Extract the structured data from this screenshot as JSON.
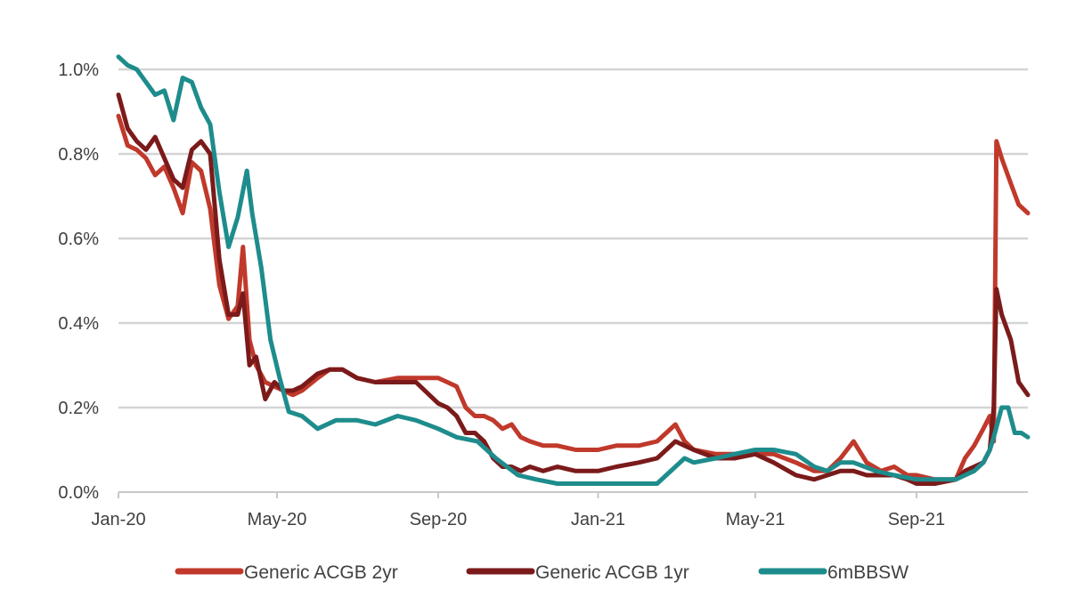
{
  "chart_data": {
    "type": "line",
    "title": "",
    "xlabel": "",
    "ylabel": "",
    "x_range": [
      "2020-01-01",
      "2021-11-25"
    ],
    "ylim": [
      0,
      1.0
    ],
    "y_ticks": [
      0.0,
      0.2,
      0.4,
      0.6,
      0.8,
      1.0
    ],
    "y_tick_labels": [
      "0.0%",
      "0.2%",
      "0.4%",
      "0.6%",
      "0.8%",
      "1.0%"
    ],
    "x_ticks": [
      "2020-01-01",
      "2020-05-01",
      "2020-09-01",
      "2021-01-01",
      "2021-05-01",
      "2021-09-01"
    ],
    "x_tick_labels": [
      "Jan-20",
      "May-20",
      "Sep-20",
      "Jan-21",
      "May-21",
      "Sep-21"
    ],
    "grid": "horizontal",
    "legend_position": "bottom",
    "series": [
      {
        "name": "Generic ACGB 2yr",
        "color": "#C0392B",
        "points": [
          [
            "2020-01-01",
            0.89
          ],
          [
            "2020-01-08",
            0.82
          ],
          [
            "2020-01-15",
            0.81
          ],
          [
            "2020-01-22",
            0.79
          ],
          [
            "2020-01-29",
            0.75
          ],
          [
            "2020-02-05",
            0.77
          ],
          [
            "2020-02-12",
            0.72
          ],
          [
            "2020-02-19",
            0.66
          ],
          [
            "2020-02-26",
            0.78
          ],
          [
            "2020-03-04",
            0.76
          ],
          [
            "2020-03-11",
            0.67
          ],
          [
            "2020-03-18",
            0.49
          ],
          [
            "2020-03-25",
            0.41
          ],
          [
            "2020-04-01",
            0.44
          ],
          [
            "2020-04-05",
            0.58
          ],
          [
            "2020-04-10",
            0.36
          ],
          [
            "2020-04-15",
            0.3
          ],
          [
            "2020-04-22",
            0.26
          ],
          [
            "2020-04-29",
            0.25
          ],
          [
            "2020-05-06",
            0.24
          ],
          [
            "2020-05-13",
            0.23
          ],
          [
            "2020-05-20",
            0.24
          ],
          [
            "2020-06-01",
            0.27
          ],
          [
            "2020-06-10",
            0.29
          ],
          [
            "2020-06-20",
            0.29
          ],
          [
            "2020-07-01",
            0.27
          ],
          [
            "2020-07-15",
            0.26
          ],
          [
            "2020-08-01",
            0.27
          ],
          [
            "2020-08-15",
            0.27
          ],
          [
            "2020-09-01",
            0.27
          ],
          [
            "2020-09-08",
            0.26
          ],
          [
            "2020-09-15",
            0.25
          ],
          [
            "2020-09-22",
            0.2
          ],
          [
            "2020-09-29",
            0.18
          ],
          [
            "2020-10-06",
            0.18
          ],
          [
            "2020-10-13",
            0.17
          ],
          [
            "2020-10-20",
            0.15
          ],
          [
            "2020-10-27",
            0.16
          ],
          [
            "2020-11-03",
            0.13
          ],
          [
            "2020-11-10",
            0.12
          ],
          [
            "2020-11-20",
            0.11
          ],
          [
            "2020-12-01",
            0.11
          ],
          [
            "2020-12-15",
            0.1
          ],
          [
            "2021-01-01",
            0.1
          ],
          [
            "2021-01-15",
            0.11
          ],
          [
            "2021-02-01",
            0.11
          ],
          [
            "2021-02-15",
            0.12
          ],
          [
            "2021-02-22",
            0.14
          ],
          [
            "2021-03-01",
            0.16
          ],
          [
            "2021-03-08",
            0.12
          ],
          [
            "2021-03-15",
            0.1
          ],
          [
            "2021-04-01",
            0.09
          ],
          [
            "2021-04-15",
            0.09
          ],
          [
            "2021-05-01",
            0.09
          ],
          [
            "2021-05-15",
            0.09
          ],
          [
            "2021-06-01",
            0.07
          ],
          [
            "2021-06-15",
            0.05
          ],
          [
            "2021-06-25",
            0.05
          ],
          [
            "2021-07-05",
            0.08
          ],
          [
            "2021-07-15",
            0.12
          ],
          [
            "2021-07-25",
            0.07
          ],
          [
            "2021-08-05",
            0.05
          ],
          [
            "2021-08-15",
            0.06
          ],
          [
            "2021-08-25",
            0.04
          ],
          [
            "2021-09-01",
            0.04
          ],
          [
            "2021-09-15",
            0.03
          ],
          [
            "2021-10-01",
            0.03
          ],
          [
            "2021-10-08",
            0.08
          ],
          [
            "2021-10-15",
            0.11
          ],
          [
            "2021-10-22",
            0.15
          ],
          [
            "2021-10-27",
            0.18
          ],
          [
            "2021-10-30",
            0.12
          ],
          [
            "2021-11-01",
            0.83
          ],
          [
            "2021-11-05",
            0.79
          ],
          [
            "2021-11-12",
            0.73
          ],
          [
            "2021-11-18",
            0.68
          ],
          [
            "2021-11-25",
            0.66
          ]
        ]
      },
      {
        "name": "Generic ACGB 1yr",
        "color": "#7B1A1A",
        "points": [
          [
            "2020-01-01",
            0.94
          ],
          [
            "2020-01-08",
            0.86
          ],
          [
            "2020-01-15",
            0.83
          ],
          [
            "2020-01-22",
            0.81
          ],
          [
            "2020-01-29",
            0.84
          ],
          [
            "2020-02-05",
            0.79
          ],
          [
            "2020-02-12",
            0.74
          ],
          [
            "2020-02-19",
            0.72
          ],
          [
            "2020-02-26",
            0.81
          ],
          [
            "2020-03-04",
            0.83
          ],
          [
            "2020-03-11",
            0.8
          ],
          [
            "2020-03-18",
            0.55
          ],
          [
            "2020-03-25",
            0.42
          ],
          [
            "2020-04-01",
            0.42
          ],
          [
            "2020-04-05",
            0.47
          ],
          [
            "2020-04-10",
            0.3
          ],
          [
            "2020-04-15",
            0.32
          ],
          [
            "2020-04-22",
            0.22
          ],
          [
            "2020-04-29",
            0.26
          ],
          [
            "2020-05-06",
            0.24
          ],
          [
            "2020-05-13",
            0.24
          ],
          [
            "2020-05-20",
            0.25
          ],
          [
            "2020-06-01",
            0.28
          ],
          [
            "2020-06-10",
            0.29
          ],
          [
            "2020-06-20",
            0.29
          ],
          [
            "2020-07-01",
            0.27
          ],
          [
            "2020-07-15",
            0.26
          ],
          [
            "2020-08-01",
            0.26
          ],
          [
            "2020-08-15",
            0.26
          ],
          [
            "2020-09-01",
            0.21
          ],
          [
            "2020-09-08",
            0.2
          ],
          [
            "2020-09-15",
            0.18
          ],
          [
            "2020-09-22",
            0.14
          ],
          [
            "2020-09-29",
            0.14
          ],
          [
            "2020-10-06",
            0.12
          ],
          [
            "2020-10-13",
            0.08
          ],
          [
            "2020-10-20",
            0.06
          ],
          [
            "2020-10-27",
            0.06
          ],
          [
            "2020-11-03",
            0.05
          ],
          [
            "2020-11-10",
            0.06
          ],
          [
            "2020-11-20",
            0.05
          ],
          [
            "2020-12-01",
            0.06
          ],
          [
            "2020-12-15",
            0.05
          ],
          [
            "2021-01-01",
            0.05
          ],
          [
            "2021-01-15",
            0.06
          ],
          [
            "2021-02-01",
            0.07
          ],
          [
            "2021-02-15",
            0.08
          ],
          [
            "2021-02-22",
            0.1
          ],
          [
            "2021-03-01",
            0.12
          ],
          [
            "2021-03-08",
            0.11
          ],
          [
            "2021-03-15",
            0.1
          ],
          [
            "2021-04-01",
            0.08
          ],
          [
            "2021-04-15",
            0.08
          ],
          [
            "2021-05-01",
            0.09
          ],
          [
            "2021-05-15",
            0.07
          ],
          [
            "2021-06-01",
            0.04
          ],
          [
            "2021-06-15",
            0.03
          ],
          [
            "2021-06-25",
            0.04
          ],
          [
            "2021-07-05",
            0.05
          ],
          [
            "2021-07-15",
            0.05
          ],
          [
            "2021-07-25",
            0.04
          ],
          [
            "2021-08-05",
            0.04
          ],
          [
            "2021-08-15",
            0.04
          ],
          [
            "2021-08-25",
            0.03
          ],
          [
            "2021-09-01",
            0.02
          ],
          [
            "2021-09-15",
            0.02
          ],
          [
            "2021-10-01",
            0.03
          ],
          [
            "2021-10-08",
            0.05
          ],
          [
            "2021-10-15",
            0.06
          ],
          [
            "2021-10-22",
            0.07
          ],
          [
            "2021-10-27",
            0.1
          ],
          [
            "2021-10-30",
            0.2
          ],
          [
            "2021-11-01",
            0.48
          ],
          [
            "2021-11-05",
            0.42
          ],
          [
            "2021-11-12",
            0.36
          ],
          [
            "2021-11-18",
            0.26
          ],
          [
            "2021-11-25",
            0.23
          ]
        ]
      },
      {
        "name": "6mBBSW",
        "color": "#1E8C8C",
        "points": [
          [
            "2020-01-01",
            1.03
          ],
          [
            "2020-01-08",
            1.01
          ],
          [
            "2020-01-15",
            1.0
          ],
          [
            "2020-01-22",
            0.97
          ],
          [
            "2020-01-29",
            0.94
          ],
          [
            "2020-02-05",
            0.95
          ],
          [
            "2020-02-12",
            0.88
          ],
          [
            "2020-02-19",
            0.98
          ],
          [
            "2020-02-26",
            0.97
          ],
          [
            "2020-03-04",
            0.91
          ],
          [
            "2020-03-11",
            0.87
          ],
          [
            "2020-03-18",
            0.71
          ],
          [
            "2020-03-25",
            0.58
          ],
          [
            "2020-04-01",
            0.65
          ],
          [
            "2020-04-08",
            0.76
          ],
          [
            "2020-04-12",
            0.66
          ],
          [
            "2020-04-19",
            0.53
          ],
          [
            "2020-04-26",
            0.36
          ],
          [
            "2020-05-03",
            0.27
          ],
          [
            "2020-05-10",
            0.19
          ],
          [
            "2020-05-20",
            0.18
          ],
          [
            "2020-06-01",
            0.15
          ],
          [
            "2020-06-15",
            0.17
          ],
          [
            "2020-07-01",
            0.17
          ],
          [
            "2020-07-15",
            0.16
          ],
          [
            "2020-08-01",
            0.18
          ],
          [
            "2020-08-15",
            0.17
          ],
          [
            "2020-09-01",
            0.15
          ],
          [
            "2020-09-15",
            0.13
          ],
          [
            "2020-10-01",
            0.12
          ],
          [
            "2020-10-15",
            0.08
          ],
          [
            "2020-11-01",
            0.04
          ],
          [
            "2020-11-15",
            0.03
          ],
          [
            "2020-12-01",
            0.02
          ],
          [
            "2021-01-01",
            0.02
          ],
          [
            "2021-01-15",
            0.02
          ],
          [
            "2021-02-01",
            0.02
          ],
          [
            "2021-02-15",
            0.02
          ],
          [
            "2021-03-01",
            0.06
          ],
          [
            "2021-03-08",
            0.08
          ],
          [
            "2021-03-15",
            0.07
          ],
          [
            "2021-04-01",
            0.08
          ],
          [
            "2021-04-15",
            0.09
          ],
          [
            "2021-05-01",
            0.1
          ],
          [
            "2021-05-15",
            0.1
          ],
          [
            "2021-06-01",
            0.09
          ],
          [
            "2021-06-15",
            0.06
          ],
          [
            "2021-06-25",
            0.05
          ],
          [
            "2021-07-05",
            0.07
          ],
          [
            "2021-07-15",
            0.07
          ],
          [
            "2021-08-01",
            0.05
          ],
          [
            "2021-08-15",
            0.04
          ],
          [
            "2021-09-01",
            0.03
          ],
          [
            "2021-09-15",
            0.03
          ],
          [
            "2021-10-01",
            0.03
          ],
          [
            "2021-10-08",
            0.04
          ],
          [
            "2021-10-15",
            0.05
          ],
          [
            "2021-10-22",
            0.07
          ],
          [
            "2021-10-27",
            0.1
          ],
          [
            "2021-10-30",
            0.13
          ],
          [
            "2021-11-05",
            0.2
          ],
          [
            "2021-11-10",
            0.2
          ],
          [
            "2021-11-15",
            0.14
          ],
          [
            "2021-11-20",
            0.14
          ],
          [
            "2021-11-25",
            0.13
          ]
        ]
      }
    ]
  }
}
